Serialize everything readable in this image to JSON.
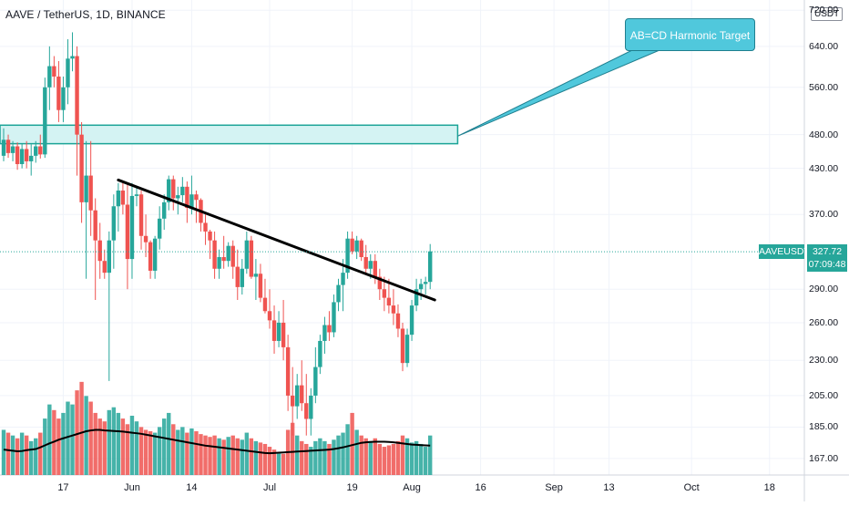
{
  "header": {
    "symbol_title": "AAVE / TetherUS, 1D, BINANCE",
    "currency_badge": "USDT"
  },
  "price_axis": {
    "labels": [
      "720.00",
      "640.00",
      "560.00",
      "480.00",
      "430.00",
      "370.00",
      "290.00",
      "260.00",
      "230.00",
      "205.00",
      "185.00",
      "167.00"
    ]
  },
  "time_axis": {
    "labels": [
      "17",
      "Jun",
      "14",
      "Jul",
      "19",
      "Aug",
      "16",
      "Sep",
      "13",
      "Oct",
      "18"
    ]
  },
  "last_price": {
    "ticker": "AAVEUSDT",
    "price": "327.72",
    "countdown": "07:09:48"
  },
  "annotation": {
    "text": "AB=CD Harmonic Target"
  },
  "colors": {
    "up": "#26a69a",
    "down": "#ef5350",
    "target_box_fill": "#d4f3f3",
    "target_box_stroke": "#1ba497",
    "callout": "#50c8dc",
    "trendline": "#000000",
    "volume_ma": "#000000"
  },
  "chart_data": {
    "type": "candlestick",
    "symbol": "AAVEUSDT",
    "interval": "1D",
    "y_scale": "log",
    "ylim": [
      155,
      740
    ],
    "x_start_date": "2021-05-04",
    "x_end_date": "2021-10-25",
    "candles": [
      [
        448,
        490,
        440,
        472
      ],
      [
        472,
        480,
        445,
        452
      ],
      [
        452,
        470,
        440,
        462
      ],
      [
        462,
        468,
        428,
        436
      ],
      [
        436,
        466,
        430,
        458
      ],
      [
        458,
        470,
        430,
        440
      ],
      [
        440,
        465,
        420,
        448
      ],
      [
        448,
        470,
        438,
        462
      ],
      [
        462,
        480,
        444,
        450
      ],
      [
        450,
        578,
        445,
        560
      ],
      [
        560,
        640,
        520,
        600
      ],
      [
        600,
        620,
        560,
        580
      ],
      [
        580,
        610,
        500,
        520
      ],
      [
        520,
        580,
        500,
        560
      ],
      [
        560,
        655,
        530,
        615
      ],
      [
        615,
        670,
        590,
        620
      ],
      [
        620,
        640,
        420,
        480
      ],
      [
        480,
        500,
        360,
        385
      ],
      [
        385,
        470,
        300,
        420
      ],
      [
        420,
        470,
        345,
        375
      ],
      [
        375,
        390,
        280,
        340
      ],
      [
        340,
        360,
        300,
        318
      ],
      [
        318,
        330,
        300,
        306
      ],
      [
        306,
        350,
        215,
        340
      ],
      [
        340,
        395,
        310,
        380
      ],
      [
        380,
        410,
        350,
        400
      ],
      [
        400,
        410,
        370,
        382
      ],
      [
        382,
        410,
        290,
        320
      ],
      [
        320,
        410,
        300,
        393
      ],
      [
        393,
        405,
        380,
        395
      ],
      [
        395,
        400,
        330,
        345
      ],
      [
        345,
        370,
        322,
        338
      ],
      [
        338,
        340,
        300,
        308
      ],
      [
        308,
        345,
        300,
        342
      ],
      [
        342,
        380,
        330,
        365
      ],
      [
        365,
        395,
        352,
        385
      ],
      [
        385,
        420,
        375,
        415
      ],
      [
        415,
        420,
        375,
        390
      ],
      [
        390,
        405,
        370,
        394
      ],
      [
        394,
        418,
        385,
        405
      ],
      [
        405,
        412,
        360,
        378
      ],
      [
        378,
        420,
        370,
        395
      ],
      [
        395,
        400,
        360,
        388
      ],
      [
        388,
        390,
        350,
        360
      ],
      [
        360,
        370,
        335,
        350
      ],
      [
        350,
        352,
        320,
        340
      ],
      [
        340,
        350,
        300,
        310
      ],
      [
        310,
        330,
        300,
        322
      ],
      [
        322,
        345,
        310,
        318
      ],
      [
        318,
        338,
        312,
        334
      ],
      [
        334,
        340,
        300,
        312
      ],
      [
        312,
        330,
        280,
        292
      ],
      [
        292,
        320,
        285,
        310
      ],
      [
        310,
        350,
        305,
        340
      ],
      [
        340,
        345,
        300,
        302
      ],
      [
        302,
        320,
        280,
        305
      ],
      [
        305,
        315,
        278,
        282
      ],
      [
        282,
        300,
        268,
        270
      ],
      [
        270,
        290,
        255,
        262
      ],
      [
        262,
        275,
        235,
        245
      ],
      [
        245,
        270,
        240,
        260
      ],
      [
        260,
        280,
        230,
        240
      ],
      [
        240,
        250,
        195,
        205
      ],
      [
        205,
        225,
        180,
        198
      ],
      [
        198,
        220,
        190,
        212
      ],
      [
        212,
        230,
        195,
        200
      ],
      [
        200,
        220,
        180,
        190
      ],
      [
        190,
        210,
        180,
        205
      ],
      [
        205,
        240,
        200,
        225
      ],
      [
        225,
        250,
        220,
        245
      ],
      [
        245,
        265,
        235,
        258
      ],
      [
        258,
        270,
        245,
        252
      ],
      [
        252,
        285,
        248,
        278
      ],
      [
        278,
        300,
        270,
        294
      ],
      [
        294,
        320,
        270,
        306
      ],
      [
        306,
        350,
        300,
        342
      ],
      [
        342,
        350,
        325,
        328
      ],
      [
        328,
        345,
        320,
        340
      ],
      [
        340,
        342,
        318,
        322
      ],
      [
        322,
        335,
        305,
        310
      ],
      [
        310,
        325,
        300,
        318
      ],
      [
        318,
        325,
        295,
        302
      ],
      [
        302,
        310,
        280,
        290
      ],
      [
        290,
        302,
        270,
        282
      ],
      [
        282,
        300,
        268,
        275
      ],
      [
        275,
        290,
        258,
        268
      ],
      [
        268,
        276,
        248,
        255
      ],
      [
        255,
        260,
        222,
        228
      ],
      [
        228,
        255,
        225,
        250
      ],
      [
        250,
        280,
        245,
        275
      ],
      [
        275,
        300,
        270,
        290
      ],
      [
        290,
        300,
        280,
        295
      ],
      [
        295,
        302,
        285,
        297
      ],
      [
        297,
        336,
        290,
        328
      ]
    ],
    "volume": [
      160,
      150,
      140,
      130,
      150,
      140,
      120,
      130,
      150,
      200,
      250,
      230,
      200,
      220,
      260,
      250,
      300,
      330,
      280,
      260,
      220,
      200,
      190,
      230,
      240,
      220,
      200,
      180,
      210,
      190,
      170,
      160,
      155,
      150,
      170,
      200,
      220,
      180,
      160,
      170,
      150,
      165,
      155,
      145,
      140,
      135,
      140,
      130,
      125,
      135,
      140,
      130,
      125,
      150,
      130,
      120,
      115,
      110,
      100,
      90,
      80,
      75,
      160,
      185,
      140,
      120,
      110,
      100,
      120,
      130,
      120,
      110,
      125,
      140,
      150,
      180,
      220,
      160,
      140,
      130,
      120,
      130,
      110,
      100,
      105,
      110,
      120,
      140,
      130,
      115,
      120,
      110,
      100,
      140
    ],
    "volume_ma": [
      90,
      88,
      86,
      84,
      85,
      88,
      90,
      92,
      98,
      105,
      112,
      118,
      125,
      130,
      135,
      140,
      145,
      150,
      155,
      158,
      160,
      160,
      158,
      157,
      156,
      155,
      154,
      152,
      150,
      148,
      146,
      143,
      140,
      137,
      134,
      131,
      128,
      125,
      122,
      119,
      116,
      113,
      110,
      107,
      104,
      102,
      100,
      98,
      96,
      94,
      92,
      90,
      88,
      86,
      84,
      82,
      80,
      78,
      77,
      78,
      79,
      80,
      81,
      82,
      83,
      84,
      85,
      86,
      87,
      88,
      89,
      90,
      92,
      95,
      98,
      102,
      106,
      110,
      114,
      116,
      117,
      118,
      118,
      118,
      117,
      116,
      114,
      112,
      110,
      108,
      107,
      106,
      105,
      104
    ],
    "horizontal_box": {
      "price_low": 466,
      "price_high": 495
    },
    "trendline": {
      "start": {
        "x": "2021-05-29",
        "y": 414
      },
      "end": {
        "x": "2021-08-06",
        "y": 280
      }
    }
  }
}
